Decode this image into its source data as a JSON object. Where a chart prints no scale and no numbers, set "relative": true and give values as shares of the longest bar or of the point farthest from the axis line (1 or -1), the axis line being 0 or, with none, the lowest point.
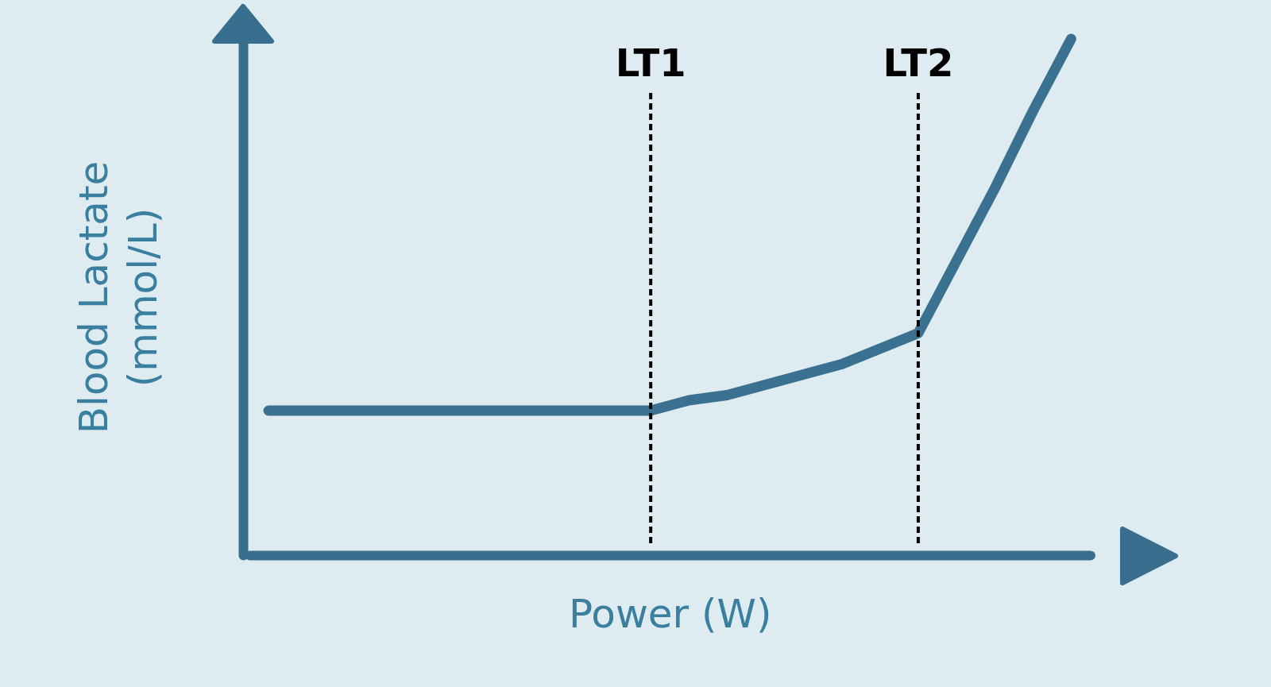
{
  "chart_data": {
    "type": "line",
    "relative": true,
    "xlabel": "Power (W)",
    "ylabel": "Blood Lactate (mmol/L)",
    "categories": [
      null,
      null,
      null,
      null,
      null,
      null,
      null,
      null,
      null,
      null,
      null,
      null,
      null,
      null,
      null,
      null,
      null,
      null,
      null,
      null,
      null,
      null
    ],
    "series": [
      {
        "color": "#3b7190",
        "values": [
          0.28,
          0.28,
          0.28,
          0.28,
          0.28,
          0.28,
          0.28,
          0.28,
          0.28,
          0.28,
          0.28,
          0.3,
          0.31,
          0.33,
          0.35,
          0.37,
          0.4,
          0.43,
          0.57,
          0.71,
          0.86,
          1.0
        ]
      }
    ],
    "annotations": [
      "LT1",
      "LT2"
    ],
    "grid": false,
    "tick_labels": false
  }
}
